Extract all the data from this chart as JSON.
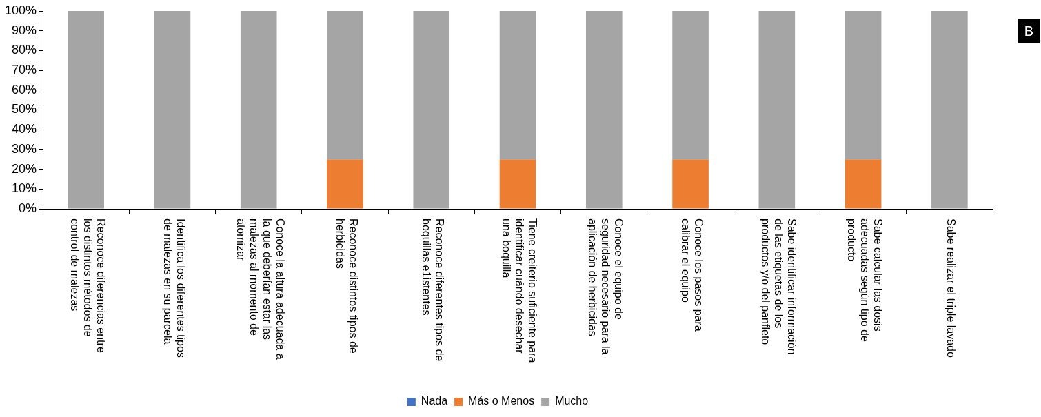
{
  "chart_data": {
    "type": "bar",
    "stacked": true,
    "categories": [
      "Reconoce diferencias entre los distintos métodos de control de malezas",
      "Identifica los diferentes tipos de malezas en su parcela",
      "Conoce la altura adecuada a la que deberían estar las malezas al momento de atomizar",
      "Reconoce distintos tipos de herbicidas",
      "Reconoce diferentes tipos de boquillas e1istentes",
      "Tiene creiterio suficiente para identificar cuándo desechar una boquilla",
      "Conoce el equipo de seguridad necesario para la aplicación de herbicidas",
      "Conoce los pasos para calibrar el equipo",
      "Sabe identificar información de las etiquetas de los productos y/o del panfleto",
      "Sabe calcular las dosis adecuadas según tipo de producto",
      "Sabe realizar el triple lavado"
    ],
    "series": [
      {
        "name": "Nada",
        "color": "#4472c4",
        "values": [
          0,
          0,
          0,
          0,
          0,
          0,
          0,
          0,
          0,
          0,
          0
        ]
      },
      {
        "name": "Más o Menos",
        "color": "#ed7d31",
        "values": [
          0,
          0,
          0,
          25,
          0,
          25,
          0,
          25,
          0,
          25,
          0
        ]
      },
      {
        "name": "Mucho",
        "color": "#a5a5a5",
        "values": [
          100,
          100,
          100,
          75,
          100,
          75,
          100,
          75,
          100,
          75,
          100
        ]
      }
    ],
    "ylim": [
      0,
      100
    ],
    "yticks": [
      {
        "value": 0,
        "label": "0%"
      },
      {
        "value": 10,
        "label": "10%"
      },
      {
        "value": 20,
        "label": "20%"
      },
      {
        "value": 30,
        "label": "30%"
      },
      {
        "value": 40,
        "label": "40%"
      },
      {
        "value": 50,
        "label": "50%"
      },
      {
        "value": 60,
        "label": "60%"
      },
      {
        "value": 70,
        "label": "70%"
      },
      {
        "value": 80,
        "label": "80%"
      },
      {
        "value": 90,
        "label": "90%"
      },
      {
        "value": 100,
        "label": "100%"
      }
    ],
    "grid": false,
    "legend": "bottom",
    "annotations": [
      "B"
    ]
  }
}
